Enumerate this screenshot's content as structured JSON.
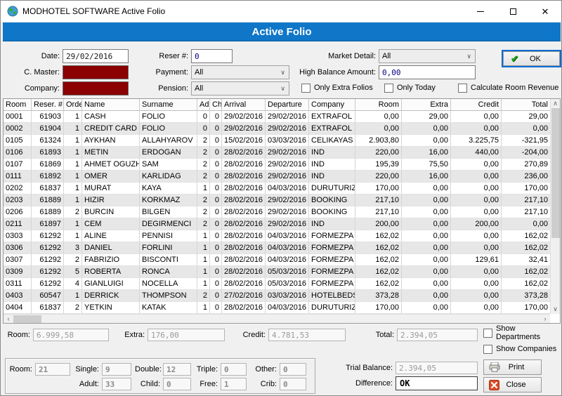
{
  "window": {
    "title": "MODHOTEL SOFTWARE Active Folio"
  },
  "banner": {
    "title": "Active Folio"
  },
  "filters": {
    "date_label": "Date:",
    "date_value": "29/02/2016",
    "c_master_label": "C. Master:",
    "company_label": "Company:",
    "reser_label": "Reser #:",
    "reser_value": "0",
    "payment_label": "Payment:",
    "payment_value": "All",
    "pension_label": "Pension:",
    "pension_value": "All",
    "market_label": "Market Detail:",
    "market_value": "All",
    "high_balance_label": "High Balance Amount:",
    "high_balance_value": "0,00",
    "checkbox_extra": "Only Extra Folios",
    "checkbox_today": "Only Today",
    "checkbox_revenue": "Calculate Room Revenue",
    "ok_label": "OK"
  },
  "table": {
    "columns": [
      "Room",
      "Reser. #",
      "Order",
      "Name",
      "Surname",
      "Ad",
      "Ch",
      "Arrival",
      "Departure",
      "Company",
      "Room",
      "Extra",
      "Credit",
      "Total"
    ],
    "rows": [
      [
        "0001",
        "61903",
        "1",
        "CASH",
        "FOLIO",
        "0",
        "0",
        "29/02/2016",
        "29/02/2016",
        "EXTRAFOL",
        "0,00",
        "29,00",
        "0,00",
        "29,00"
      ],
      [
        "0002",
        "61904",
        "1",
        "CREDIT CARD",
        "FOLIO",
        "0",
        "0",
        "29/02/2016",
        "29/02/2016",
        "EXTRAFOL",
        "0,00",
        "0,00",
        "0,00",
        "0,00"
      ],
      [
        "0105",
        "61324",
        "1",
        "AYKHAN",
        "ALLAHYAROV",
        "2",
        "0",
        "15/02/2016",
        "03/03/2016",
        "CELIKAYAS",
        "2.903,80",
        "0,00",
        "3.225,75",
        "-321,95"
      ],
      [
        "0106",
        "61893",
        "1",
        "METIN",
        "ERDOGAN",
        "2",
        "0",
        "28/02/2016",
        "29/02/2016",
        "IND",
        "220,00",
        "16,00",
        "440,00",
        "-204,00"
      ],
      [
        "0107",
        "61869",
        "1",
        "AHMET OGUZH",
        "SAM",
        "2",
        "0",
        "28/02/2016",
        "29/02/2016",
        "IND",
        "195,39",
        "75,50",
        "0,00",
        "270,89"
      ],
      [
        "0111",
        "61892",
        "1",
        "OMER",
        "KARLIDAG",
        "2",
        "0",
        "28/02/2016",
        "29/02/2016",
        "IND",
        "220,00",
        "16,00",
        "0,00",
        "236,00"
      ],
      [
        "0202",
        "61837",
        "1",
        "MURAT",
        "KAYA",
        "1",
        "0",
        "28/02/2016",
        "04/03/2016",
        "DURUTURIZ",
        "170,00",
        "0,00",
        "0,00",
        "170,00"
      ],
      [
        "0203",
        "61889",
        "1",
        "HIZIR",
        "KORKMAZ",
        "2",
        "0",
        "28/02/2016",
        "29/02/2016",
        "BOOKING",
        "217,10",
        "0,00",
        "0,00",
        "217,10"
      ],
      [
        "0206",
        "61889",
        "2",
        "BURCIN",
        "BILGEN",
        "2",
        "0",
        "28/02/2016",
        "29/02/2016",
        "BOOKING",
        "217,10",
        "0,00",
        "0,00",
        "217,10"
      ],
      [
        "0211",
        "61897",
        "1",
        "CEM",
        "DEGIRMENCI",
        "2",
        "0",
        "28/02/2016",
        "29/02/2016",
        "IND",
        "200,00",
        "0,00",
        "200,00",
        "0,00"
      ],
      [
        "0303",
        "61292",
        "1",
        "ALINE",
        "PENNISI",
        "1",
        "0",
        "28/02/2016",
        "04/03/2016",
        "FORMEZPA",
        "162,02",
        "0,00",
        "0,00",
        "162,02"
      ],
      [
        "0306",
        "61292",
        "3",
        "DANIEL",
        "FORLINI",
        "1",
        "0",
        "28/02/2016",
        "04/03/2016",
        "FORMEZPA",
        "162,02",
        "0,00",
        "0,00",
        "162,02"
      ],
      [
        "0307",
        "61292",
        "2",
        "FABRIZIO",
        "BISCONTI",
        "1",
        "0",
        "28/02/2016",
        "04/03/2016",
        "FORMEZPA",
        "162,02",
        "0,00",
        "129,61",
        "32,41"
      ],
      [
        "0309",
        "61292",
        "5",
        "ROBERTA",
        "RONCA",
        "1",
        "0",
        "28/02/2016",
        "05/03/2016",
        "FORMEZPA",
        "162,02",
        "0,00",
        "0,00",
        "162,02"
      ],
      [
        "0311",
        "61292",
        "4",
        "GIANLUIGI",
        "NOCELLA",
        "1",
        "0",
        "28/02/2016",
        "05/03/2016",
        "FORMEZPA",
        "162,02",
        "0,00",
        "0,00",
        "162,02"
      ],
      [
        "0403",
        "60547",
        "1",
        "DERRICK",
        "THOMPSON",
        "2",
        "0",
        "27/02/2016",
        "03/03/2016",
        "HOTELBEDS",
        "373,28",
        "0,00",
        "0,00",
        "373,28"
      ],
      [
        "0404",
        "61837",
        "2",
        "YETKIN",
        "KATAK",
        "1",
        "0",
        "28/02/2016",
        "04/03/2016",
        "DURUTURIZ",
        "170,00",
        "0,00",
        "0,00",
        "170,00"
      ]
    ]
  },
  "totals": {
    "room_label": "Room:",
    "room_value": "6.999,58",
    "extra_label": "Extra:",
    "extra_value": "176,00",
    "credit_label": "Credit:",
    "credit_value": "4.781,53",
    "total_label": "Total:",
    "total_value": "2.394,05",
    "show_departments": "Show Departments",
    "show_companies": "Show Companies"
  },
  "stats": {
    "room_label": "Room:",
    "room_value": "21",
    "single_label": "Single:",
    "single_value": "9",
    "double_label": "Double:",
    "double_value": "12",
    "triple_label": "Triple:",
    "triple_value": "0",
    "other_label": "Other:",
    "other_value": "0",
    "adult_label": "Adult:",
    "adult_value": "33",
    "child_label": "Child:",
    "child_value": "0",
    "free_label": "Free:",
    "free_value": "1",
    "crib_label": "Crib:",
    "crib_value": "0"
  },
  "footer": {
    "trial_label": "Trial Balance:",
    "trial_value": "2.394,05",
    "diff_label": "Difference:",
    "diff_value": "OK",
    "print_label": "Print",
    "close_label": "Close"
  }
}
